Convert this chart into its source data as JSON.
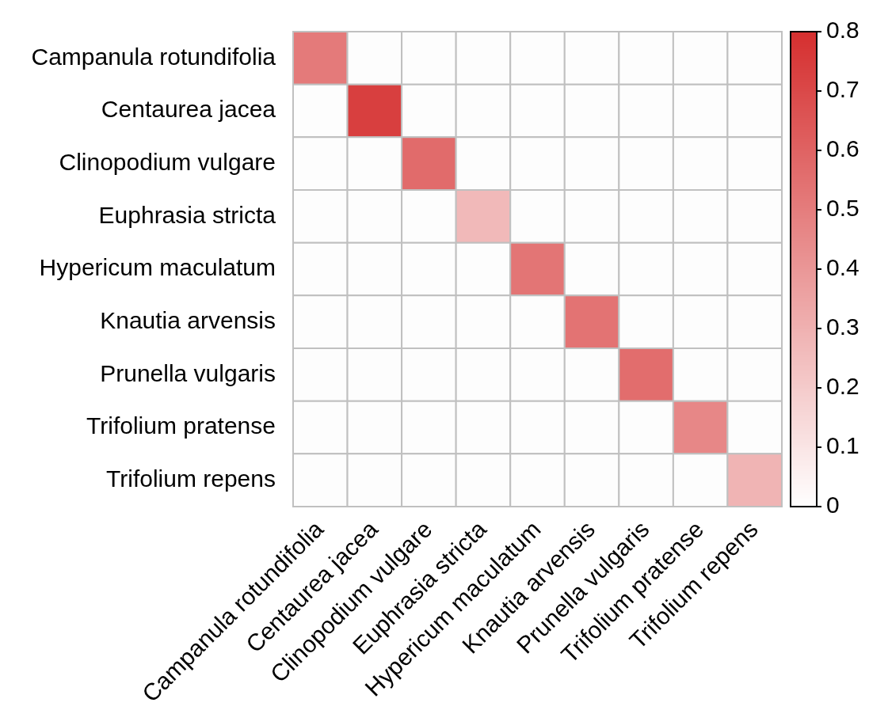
{
  "chart_data": {
    "type": "heatmap",
    "categories": [
      "Campanula rotundifolia",
      "Centaurea jacea",
      "Clinopodium vulgare",
      "Euphrasia stricta",
      "Hypericum maculatum",
      "Knautia arvensis",
      "Prunella vulgaris",
      "Trifolium pratense",
      "Trifolium repens"
    ],
    "y_categories": [
      "Campanula rotundifolia",
      "Centaurea jacea",
      "Clinopodium vulgare",
      "Euphrasia stricta",
      "Hypericum maculatum",
      "Knautia arvensis",
      "Prunella vulgaris",
      "Trifolium pratense",
      "Trifolium repens"
    ],
    "cells": [
      [
        0.51,
        0,
        0,
        0,
        0,
        0,
        0,
        0,
        0
      ],
      [
        0,
        0.74,
        0,
        0,
        0,
        0,
        0,
        0,
        0
      ],
      [
        0,
        0,
        0.57,
        0,
        0,
        0,
        0,
        0,
        0
      ],
      [
        0,
        0,
        0,
        0.27,
        0,
        0,
        0,
        0,
        0
      ],
      [
        0,
        0,
        0,
        0,
        0.53,
        0,
        0,
        0,
        0
      ],
      [
        0,
        0,
        0,
        0,
        0,
        0.54,
        0,
        0,
        0
      ],
      [
        0,
        0,
        0,
        0,
        0,
        0,
        0.56,
        0,
        0
      ],
      [
        0,
        0,
        0,
        0,
        0,
        0,
        0,
        0.46,
        0
      ],
      [
        0,
        0,
        0,
        0,
        0,
        0,
        0,
        0,
        0.29
      ]
    ],
    "clim": [
      0,
      0.8
    ],
    "cticks": [
      0,
      0.1,
      0.2,
      0.3,
      0.4,
      0.5,
      0.6,
      0.7,
      0.8
    ]
  }
}
